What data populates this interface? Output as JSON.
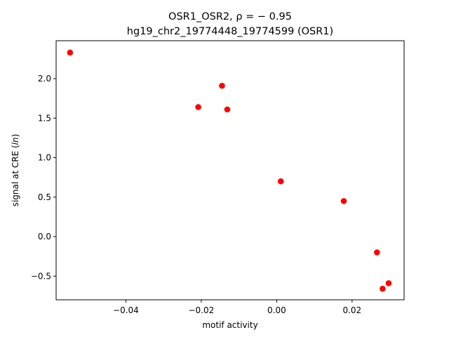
{
  "chart_data": {
    "type": "scatter",
    "title_line1": "OSR1_OSR2, ρ = − 0.95",
    "title_line2": "hg19_chr2_19774448_19774599 (OSR1)",
    "xlabel": "motif activity",
    "ylabel_prefix": "signal at CRE (",
    "ylabel_italic": "ln",
    "ylabel_suffix": ")",
    "xlim": [
      -0.0585,
      0.0338
    ],
    "ylim": [
      -0.8,
      2.48
    ],
    "xticks": [
      -0.04,
      -0.02,
      0.0,
      0.02
    ],
    "xtick_labels": [
      "−0.04",
      "−0.02",
      "0.00",
      "0.02"
    ],
    "yticks": [
      -0.5,
      0.0,
      0.5,
      1.0,
      1.5,
      2.0
    ],
    "ytick_labels": [
      "−0.5",
      "0.0",
      "0.5",
      "1.0",
      "1.5",
      "2.0"
    ],
    "grid": false,
    "marker_color": "#ff0000",
    "points": [
      {
        "x": -0.0548,
        "y": 2.33
      },
      {
        "x": -0.0208,
        "y": 1.64
      },
      {
        "x": -0.0145,
        "y": 1.91
      },
      {
        "x": -0.0131,
        "y": 1.61
      },
      {
        "x": 0.0011,
        "y": 0.7
      },
      {
        "x": 0.0178,
        "y": 0.45
      },
      {
        "x": 0.0266,
        "y": -0.2
      },
      {
        "x": 0.0281,
        "y": -0.66
      },
      {
        "x": 0.0297,
        "y": -0.59
      }
    ]
  }
}
